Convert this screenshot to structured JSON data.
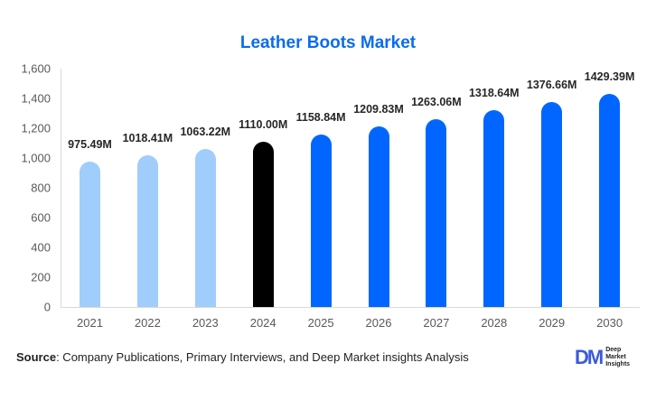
{
  "title": "Leather Boots Market",
  "chart_data": {
    "type": "bar",
    "title": "Leather Boots Market",
    "xlabel": "",
    "ylabel": "",
    "ylim": [
      0,
      1600
    ],
    "yticks": [
      0,
      200,
      400,
      600,
      800,
      1000,
      1200,
      1400,
      1600
    ],
    "ytick_labels": [
      "0",
      "200",
      "400",
      "600",
      "800",
      "1,000",
      "1,200",
      "1,400",
      "1,600"
    ],
    "categories": [
      "2021",
      "2022",
      "2023",
      "2024",
      "2025",
      "2026",
      "2027",
      "2028",
      "2029",
      "2030"
    ],
    "values": [
      975.49,
      1018.41,
      1063.22,
      1110.0,
      1158.84,
      1209.83,
      1263.06,
      1318.64,
      1376.66,
      1429.39
    ],
    "value_labels": [
      "975.49M",
      "1018.41M",
      "1063.22M",
      "1110.00M",
      "1158.84M",
      "1209.83M",
      "1263.06M",
      "1318.64M",
      "1376.66M",
      "1429.39M"
    ],
    "bar_colors": [
      "#a0cdfc",
      "#a0cdfc",
      "#a0cdfc",
      "#000000",
      "#0066ff",
      "#0066ff",
      "#0066ff",
      "#0066ff",
      "#0066ff",
      "#0066ff"
    ],
    "grid": false,
    "legend": null
  },
  "source": {
    "label": "Source",
    "text": ": Company Publications, Primary Interviews, and Deep Market insights Analysis"
  },
  "logo": {
    "mark": "DM",
    "line1": "Deep",
    "line2": "Market",
    "line3": "Insights"
  }
}
